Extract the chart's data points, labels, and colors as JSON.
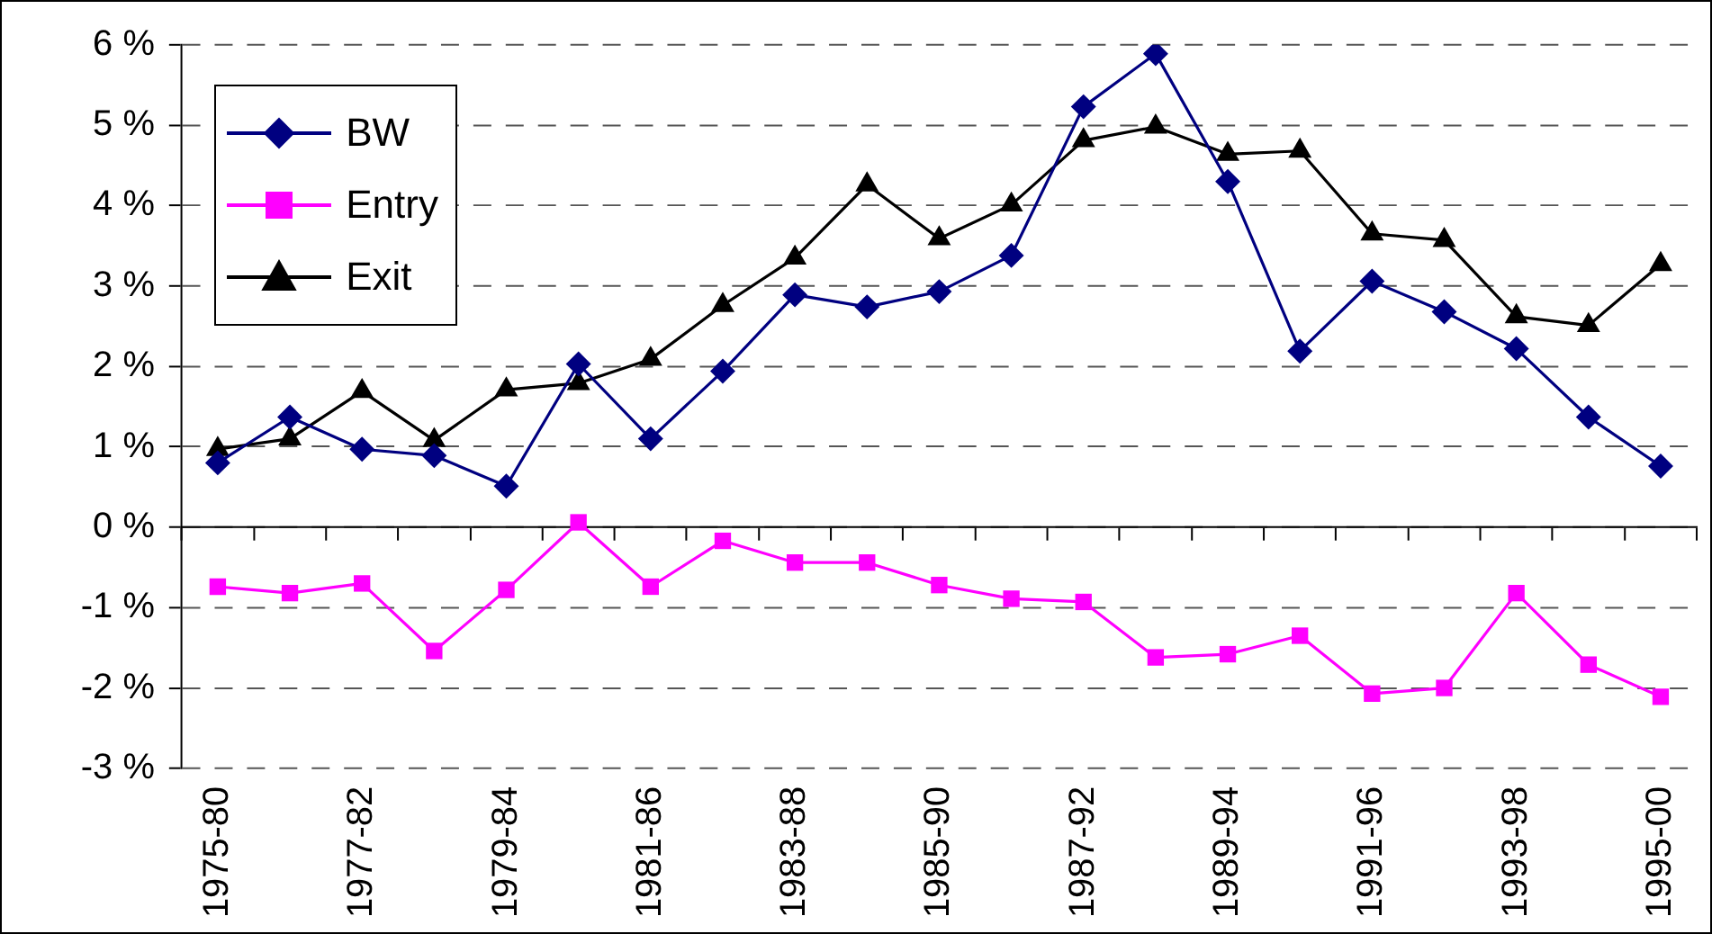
{
  "chart_data": {
    "type": "line",
    "categories": [
      "1975-80",
      null,
      "1977-82",
      null,
      "1979-84",
      null,
      "1981-86",
      null,
      "1983-88",
      null,
      "1985-90",
      null,
      "1987-92",
      null,
      "1989-94",
      null,
      "1991-96",
      null,
      "1993-98",
      null,
      "1995-00"
    ],
    "series": [
      {
        "name": "BW",
        "color": "#000080",
        "marker": "diamond",
        "values": [
          0.8,
          1.37,
          0.97,
          0.89,
          0.51,
          2.03,
          1.1,
          1.94,
          2.89,
          2.74,
          2.93,
          3.38,
          5.23,
          5.89,
          4.3,
          2.19,
          3.06,
          2.68,
          2.22,
          1.37,
          0.76
        ]
      },
      {
        "name": "Entry",
        "color": "#ff00ff",
        "marker": "square",
        "values": [
          -0.74,
          -0.82,
          -0.7,
          -1.54,
          -0.78,
          0.06,
          -0.74,
          -0.17,
          -0.44,
          -0.44,
          -0.72,
          -0.89,
          -0.93,
          -1.62,
          -1.58,
          -1.35,
          -2.07,
          -2.0,
          -0.82,
          -1.71,
          -2.11
        ]
      },
      {
        "name": "Exit",
        "color": "#000000",
        "marker": "triangle",
        "values": [
          0.97,
          1.1,
          1.69,
          1.08,
          1.71,
          1.79,
          2.09,
          2.76,
          3.35,
          4.26,
          3.59,
          4.01,
          4.81,
          4.98,
          4.64,
          4.68,
          3.65,
          3.57,
          2.62,
          2.51,
          3.27
        ]
      }
    ],
    "ylim": [
      -3,
      6
    ],
    "yticks": [
      {
        "value": -3,
        "label": "-3 %"
      },
      {
        "value": -2,
        "label": "-2 %"
      },
      {
        "value": -1,
        "label": "-1 %"
      },
      {
        "value": 0,
        "label": "0 %"
      },
      {
        "value": 1,
        "label": "1 %"
      },
      {
        "value": 2,
        "label": "2 %"
      },
      {
        "value": 3,
        "label": "3 %"
      },
      {
        "value": 4,
        "label": "4 %"
      },
      {
        "value": 5,
        "label": "5 %"
      },
      {
        "value": 6,
        "label": "6 %"
      }
    ],
    "grid": "y",
    "legend": "top left",
    "line_style": "solid"
  }
}
